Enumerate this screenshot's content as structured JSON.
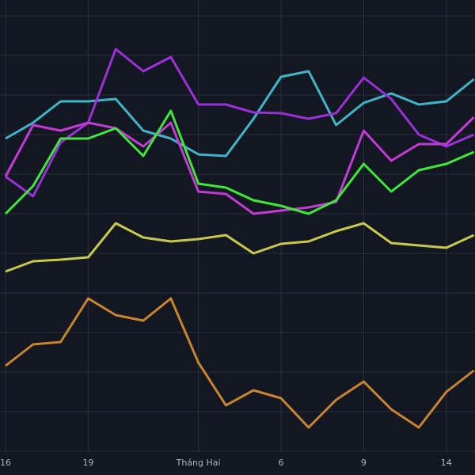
{
  "chart_data": {
    "type": "line",
    "categories": [
      "16",
      null,
      null,
      "19",
      null,
      null,
      null,
      "Tháng Hai",
      null,
      null,
      "6",
      null,
      null,
      "9",
      null,
      null,
      "14",
      null
    ],
    "series": [
      {
        "color": "#3fb6c8",
        "values": [
          79,
          83,
          88.4,
          88.4,
          89,
          81,
          79,
          75,
          74.6,
          84,
          94.6,
          96,
          82.4,
          88,
          90.4,
          87.6,
          88.4,
          94
        ]
      },
      {
        "color": "#9b30d9",
        "values": [
          69.4,
          64.4,
          78,
          83,
          101.6,
          96,
          99.6,
          87.6,
          87.6,
          85.6,
          85.4,
          84,
          85.4,
          94.4,
          89,
          80,
          77,
          80
        ]
      },
      {
        "color": "#c43ad6",
        "values": [
          69.4,
          82.4,
          81,
          83,
          81.6,
          77,
          83,
          65.6,
          65,
          60,
          60.8,
          61.6,
          63,
          81,
          73.4,
          77.6,
          77.6,
          84.4
        ]
      },
      {
        "color": "#3ee83a",
        "values": [
          60,
          67,
          79,
          79,
          81.6,
          74.6,
          86,
          67.6,
          66.6,
          63.4,
          62,
          60,
          63.4,
          72.6,
          65.6,
          71,
          72.6,
          75.6
        ]
      },
      {
        "color": "#c8c84a",
        "values": [
          45.4,
          48,
          48.4,
          49,
          57.6,
          54,
          53,
          53.6,
          54.6,
          50,
          52.4,
          53,
          55.6,
          57.6,
          52.6,
          52,
          51.4,
          54.6
        ]
      },
      {
        "color": "#c8842e",
        "values": [
          21.6,
          27,
          27.6,
          38.6,
          34.4,
          33,
          38.6,
          22.4,
          11.6,
          15.4,
          13.4,
          6,
          13,
          17.6,
          10.6,
          6,
          15,
          20.4
        ]
      }
    ],
    "ylim": [
      -6,
      114
    ],
    "yticks": [
      0,
      10,
      20,
      30,
      40,
      50,
      60,
      70,
      80,
      90,
      100,
      110
    ],
    "grid": true
  }
}
